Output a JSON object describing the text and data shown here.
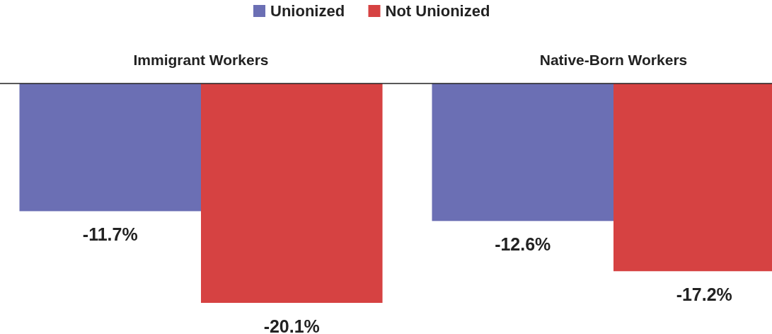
{
  "chart_data": {
    "type": "bar",
    "categories": [
      "Immigrant Workers",
      "Native-Born Workers"
    ],
    "legend": "top",
    "series": [
      {
        "name": "Unionized",
        "color": "#6b6fb4",
        "values": [
          -11.7,
          -12.6
        ],
        "value_labels": [
          "-11.7%",
          "-12.6%"
        ]
      },
      {
        "name": "Not Unionized",
        "color": "#d64242",
        "values": [
          -20.1,
          -17.2
        ],
        "value_labels": [
          "-20.1%",
          "-17.2%"
        ]
      }
    ]
  }
}
